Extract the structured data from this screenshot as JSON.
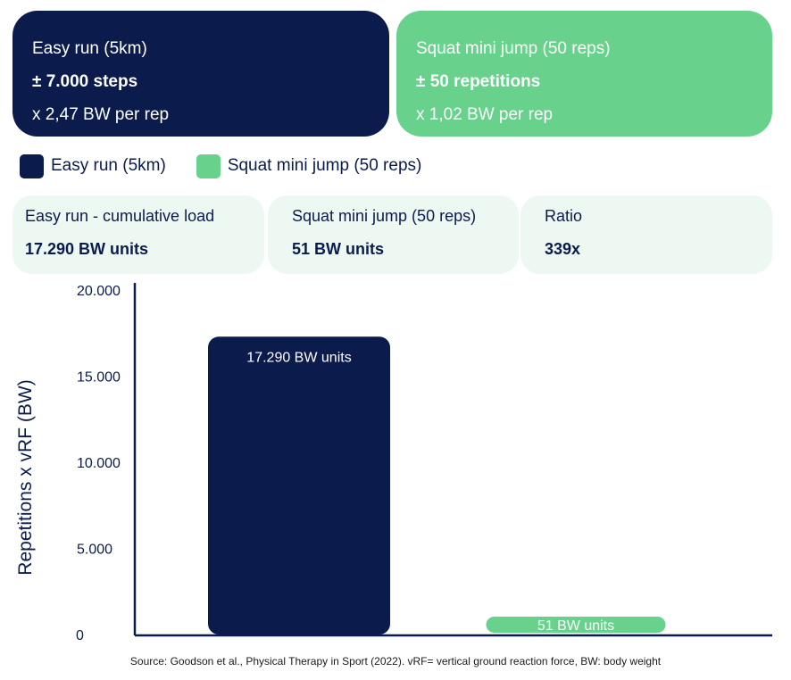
{
  "cards": {
    "run": {
      "title": "Easy run (5km)",
      "amount": "± 7.000 steps",
      "load": "x 2,47 BW per rep"
    },
    "squat": {
      "title": "Squat mini jump (50 reps)",
      "amount": "± 50 repetitions",
      "load": "x 1,02 BW per rep"
    }
  },
  "legend": [
    {
      "label": "Easy run (5km)",
      "color": "#0b1b4b"
    },
    {
      "label": "Squat mini jump (50 reps)",
      "color": "#68d28d"
    }
  ],
  "stats": {
    "run": {
      "label": "Easy run - cumulative load",
      "value": "17.290 BW units"
    },
    "squat": {
      "label": "Squat mini jump (50 reps)",
      "value": "51 BW units"
    },
    "ratio": {
      "label": "Ratio",
      "value": "339x"
    }
  },
  "chart_data": {
    "type": "bar",
    "categories": [
      "Easy run (5km)",
      "Squat mini jump (50 reps)"
    ],
    "values": [
      17290,
      51
    ],
    "data_labels": [
      "17.290 BW units",
      "51 BW units"
    ],
    "colors": [
      "#0b1b4b",
      "#68d28d"
    ],
    "ylabel": "Repetitions x vRF (BW)",
    "xlabel": "",
    "ylim": [
      0,
      20000
    ],
    "yticks": [
      0,
      5000,
      10000,
      15000,
      20000
    ],
    "ytick_labels": [
      "0",
      "5.000",
      "10.000",
      "15.000",
      "20.000"
    ],
    "grid": false
  },
  "source": "Source: Goodson et al., Physical Therapy in Sport (2022). vRF= vertical ground reaction force, BW: body weight"
}
